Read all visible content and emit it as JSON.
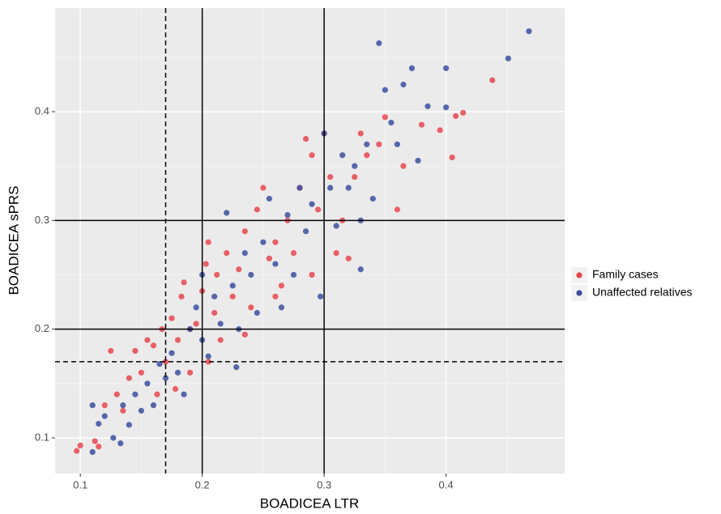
{
  "chart_data": {
    "type": "scatter",
    "x_label": "BOADICEA LTR",
    "y_label": "BOADICEA sPRS",
    "xlim": [
      0.0793,
      0.4973
    ],
    "ylim": [
      0.0672,
      0.4953
    ],
    "xticks": [
      0.1,
      0.2,
      0.3,
      0.4
    ],
    "yticks": [
      0.1,
      0.2,
      0.3,
      0.4
    ],
    "x_minor_ticks": [
      0.15,
      0.25,
      0.35,
      0.45
    ],
    "y_minor_ticks": [
      0.15,
      0.25,
      0.35,
      0.45
    ],
    "grid": true,
    "legend": "right",
    "reference_lines": [
      {
        "axis": "x",
        "value": 0.17,
        "style": "dashed"
      },
      {
        "axis": "x",
        "value": 0.2,
        "style": "solid"
      },
      {
        "axis": "x",
        "value": 0.3,
        "style": "solid"
      },
      {
        "axis": "y",
        "value": 0.17,
        "style": "dashed"
      },
      {
        "axis": "y",
        "value": 0.2,
        "style": "solid"
      },
      {
        "axis": "y",
        "value": 0.3,
        "style": "solid"
      }
    ],
    "series": [
      {
        "name": "Family cases",
        "color": "#e8474f",
        "x": [
          0.097,
          0.1,
          0.112,
          0.115,
          0.12,
          0.125,
          0.13,
          0.135,
          0.14,
          0.145,
          0.15,
          0.155,
          0.16,
          0.163,
          0.167,
          0.17,
          0.175,
          0.178,
          0.18,
          0.183,
          0.185,
          0.19,
          0.195,
          0.2,
          0.203,
          0.205,
          0.21,
          0.212,
          0.215,
          0.22,
          0.225,
          0.23,
          0.235,
          0.24,
          0.245,
          0.25,
          0.255,
          0.26,
          0.265,
          0.27,
          0.275,
          0.28,
          0.285,
          0.29,
          0.295,
          0.3,
          0.305,
          0.31,
          0.315,
          0.32,
          0.325,
          0.33,
          0.335,
          0.345,
          0.35,
          0.36,
          0.365,
          0.38,
          0.395,
          0.405,
          0.408,
          0.414,
          0.438,
          0.235,
          0.205,
          0.19,
          0.26,
          0.29
        ],
        "y": [
          0.088,
          0.093,
          0.097,
          0.092,
          0.13,
          0.18,
          0.14,
          0.125,
          0.155,
          0.18,
          0.16,
          0.19,
          0.185,
          0.14,
          0.2,
          0.17,
          0.21,
          0.145,
          0.19,
          0.23,
          0.243,
          0.2,
          0.205,
          0.235,
          0.26,
          0.28,
          0.215,
          0.25,
          0.19,
          0.27,
          0.23,
          0.255,
          0.29,
          0.22,
          0.31,
          0.33,
          0.265,
          0.28,
          0.24,
          0.3,
          0.27,
          0.33,
          0.375,
          0.36,
          0.31,
          0.38,
          0.34,
          0.27,
          0.3,
          0.265,
          0.34,
          0.38,
          0.36,
          0.37,
          0.395,
          0.31,
          0.35,
          0.388,
          0.383,
          0.358,
          0.396,
          0.399,
          0.429,
          0.195,
          0.17,
          0.16,
          0.23,
          0.25
        ]
      },
      {
        "name": "Unaffected relatives",
        "color": "#3b4fa0",
        "x": [
          0.11,
          0.11,
          0.115,
          0.12,
          0.127,
          0.133,
          0.135,
          0.14,
          0.145,
          0.15,
          0.155,
          0.16,
          0.165,
          0.17,
          0.175,
          0.18,
          0.185,
          0.19,
          0.195,
          0.2,
          0.2,
          0.205,
          0.21,
          0.215,
          0.22,
          0.225,
          0.228,
          0.23,
          0.235,
          0.24,
          0.245,
          0.25,
          0.255,
          0.26,
          0.265,
          0.27,
          0.275,
          0.28,
          0.285,
          0.29,
          0.297,
          0.3,
          0.305,
          0.31,
          0.315,
          0.32,
          0.325,
          0.33,
          0.335,
          0.34,
          0.345,
          0.35,
          0.355,
          0.36,
          0.365,
          0.372,
          0.377,
          0.385,
          0.4,
          0.4,
          0.451,
          0.468,
          0.33
        ],
        "y": [
          0.13,
          0.087,
          0.113,
          0.12,
          0.1,
          0.095,
          0.13,
          0.112,
          0.14,
          0.125,
          0.15,
          0.13,
          0.168,
          0.155,
          0.178,
          0.16,
          0.14,
          0.2,
          0.22,
          0.19,
          0.25,
          0.175,
          0.23,
          0.205,
          0.307,
          0.24,
          0.165,
          0.2,
          0.27,
          0.25,
          0.215,
          0.28,
          0.32,
          0.26,
          0.22,
          0.305,
          0.25,
          0.33,
          0.29,
          0.315,
          0.23,
          0.38,
          0.33,
          0.295,
          0.36,
          0.33,
          0.35,
          0.255,
          0.37,
          0.32,
          0.463,
          0.42,
          0.39,
          0.37,
          0.425,
          0.44,
          0.355,
          0.405,
          0.404,
          0.44,
          0.449,
          0.474,
          0.3
        ]
      }
    ]
  }
}
